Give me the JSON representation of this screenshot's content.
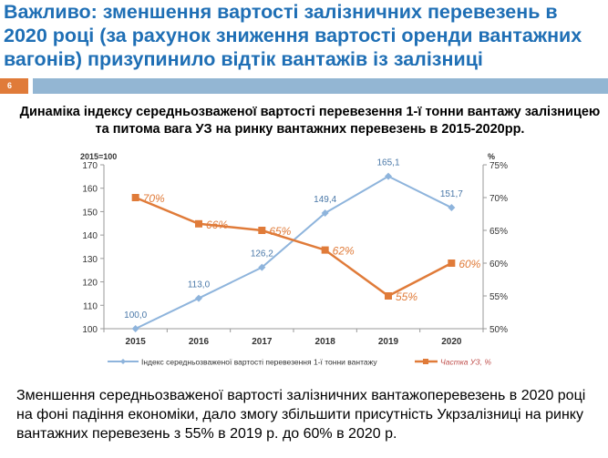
{
  "slide": {
    "title": "Важливо: зменшення вартості залізничних перевезень в 2020 році (за рахунок зниження вартості оренди вантажних вагонів) призупинило відтік вантажів із залізниці",
    "number": "6",
    "footer": "Зменшення середньозваженої вартості залізничних вантажоперевезень в 2020 році на фоні падіння економіки, дало змогу збільшити присутність Укрзалізниці  на ринку вантажних перевезень з 55% в 2019 р. до 60% в 2020 р."
  },
  "chart_data": {
    "type": "line",
    "title": "Динаміка індексу середньозваженої вартості перевезення 1-ї тонни вантажу залізницею та питома вага УЗ на ринку вантажних перевезень  в 2015-2020рр.",
    "categories": [
      "2015",
      "2016",
      "2017",
      "2018",
      "2019",
      "2020"
    ],
    "ylabel": "2015=100",
    "y2label": "%",
    "ylim": [
      100,
      170
    ],
    "y2lim": [
      50,
      75
    ],
    "yticks": [
      "100",
      "110",
      "120",
      "130",
      "140",
      "150",
      "160",
      "170"
    ],
    "y2ticks": [
      "50%",
      "55%",
      "60%",
      "65%",
      "70%",
      "75%"
    ],
    "series": [
      {
        "name": "Індекс середньозваженої вартості перевезення 1-ї тонни вантажу",
        "axis": "left",
        "color": "#8eb4dc",
        "values": [
          100.0,
          113.0,
          126.2,
          149.4,
          165.1,
          151.7
        ],
        "labels": [
          "100,0",
          "113,0",
          "126,2",
          "149,4",
          "165,1",
          "151,7"
        ]
      },
      {
        "name": "Частка УЗ, %",
        "axis": "right",
        "color": "#e07b39",
        "values": [
          70,
          66,
          65,
          62,
          55,
          60
        ],
        "labels": [
          "70%",
          "66%",
          "65%",
          "62%",
          "55%",
          "60%"
        ]
      }
    ],
    "legend": "bottom",
    "grid": false
  }
}
